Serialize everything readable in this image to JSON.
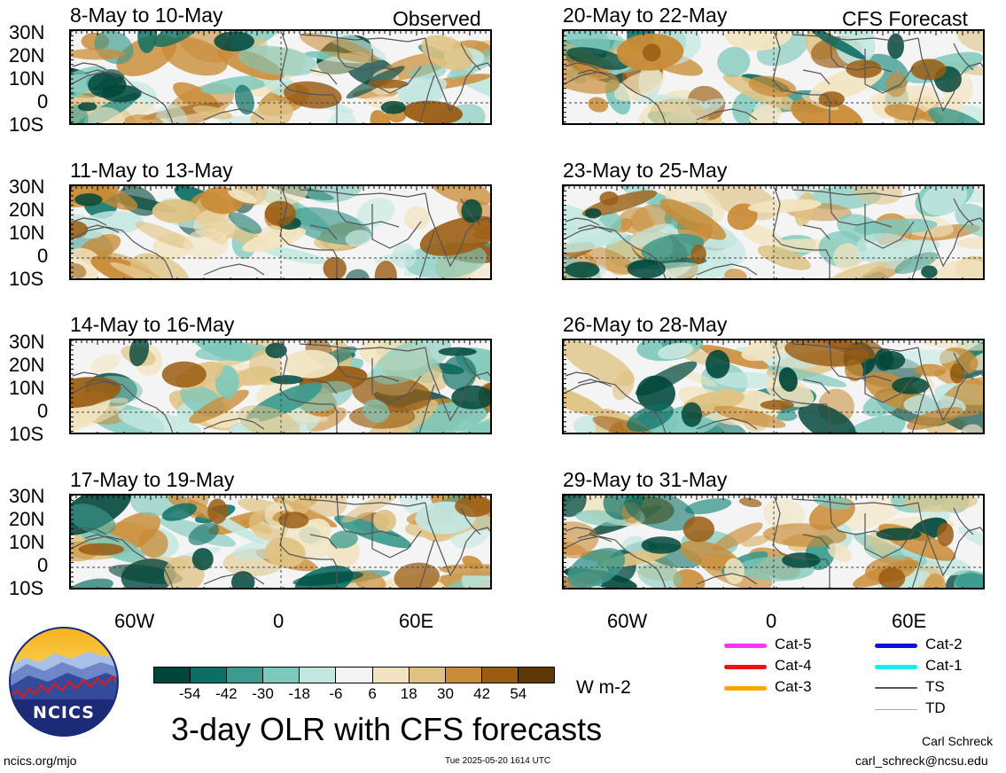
{
  "column_titles": {
    "left": "Observed",
    "right": "CFS Forecast"
  },
  "panels": [
    {
      "title": "8-May to 10-May",
      "column": "left",
      "row": 0
    },
    {
      "title": "11-May to 13-May",
      "column": "left",
      "row": 1
    },
    {
      "title": "14-May to 16-May",
      "column": "left",
      "row": 2
    },
    {
      "title": "17-May to 19-May",
      "column": "left",
      "row": 3
    },
    {
      "title": "20-May to 22-May",
      "column": "right",
      "row": 0
    },
    {
      "title": "23-May to 25-May",
      "column": "right",
      "row": 1
    },
    {
      "title": "26-May to 28-May",
      "column": "right",
      "row": 2
    },
    {
      "title": "29-May to 31-May",
      "column": "right",
      "row": 3
    }
  ],
  "lat_labels": [
    "30N",
    "20N",
    "10N",
    "0",
    "10S"
  ],
  "lon_labels": [
    "60W",
    "0",
    "60E"
  ],
  "colorbar": {
    "colors": [
      "#00463a",
      "#0b6f64",
      "#3c9a8e",
      "#7ec8bb",
      "#c3e7e0",
      "#f4f4f4",
      "#f2e4c0",
      "#dfc283",
      "#c98b36",
      "#9a5c12",
      "#5f3808"
    ],
    "ticks": [
      "-54",
      "-42",
      "-30",
      "-18",
      "-6",
      "6",
      "18",
      "30",
      "42",
      "54"
    ],
    "units": "W m-2"
  },
  "legend": [
    {
      "label": "Cat-5",
      "color": "#ff33ff"
    },
    {
      "label": "Cat-4",
      "color": "#ee1111"
    },
    {
      "label": "Cat-3",
      "color": "#ffa500"
    },
    {
      "label": "Cat-2",
      "color": "#1010dd"
    },
    {
      "label": "Cat-1",
      "color": "#11eeee"
    },
    {
      "label": "TS",
      "color": "#555555"
    },
    {
      "label": "TD",
      "color": "#aaaaaa"
    }
  ],
  "logo_text": "NCICS",
  "main_title": "3-day OLR with CFS forecasts",
  "footer": {
    "url": "ncics.org/mjo",
    "timestamp": "Tue 2025-05-20 1614 UTC",
    "author": "Carl Schreck",
    "email": "carl_schreck@ncsu.edu"
  }
}
